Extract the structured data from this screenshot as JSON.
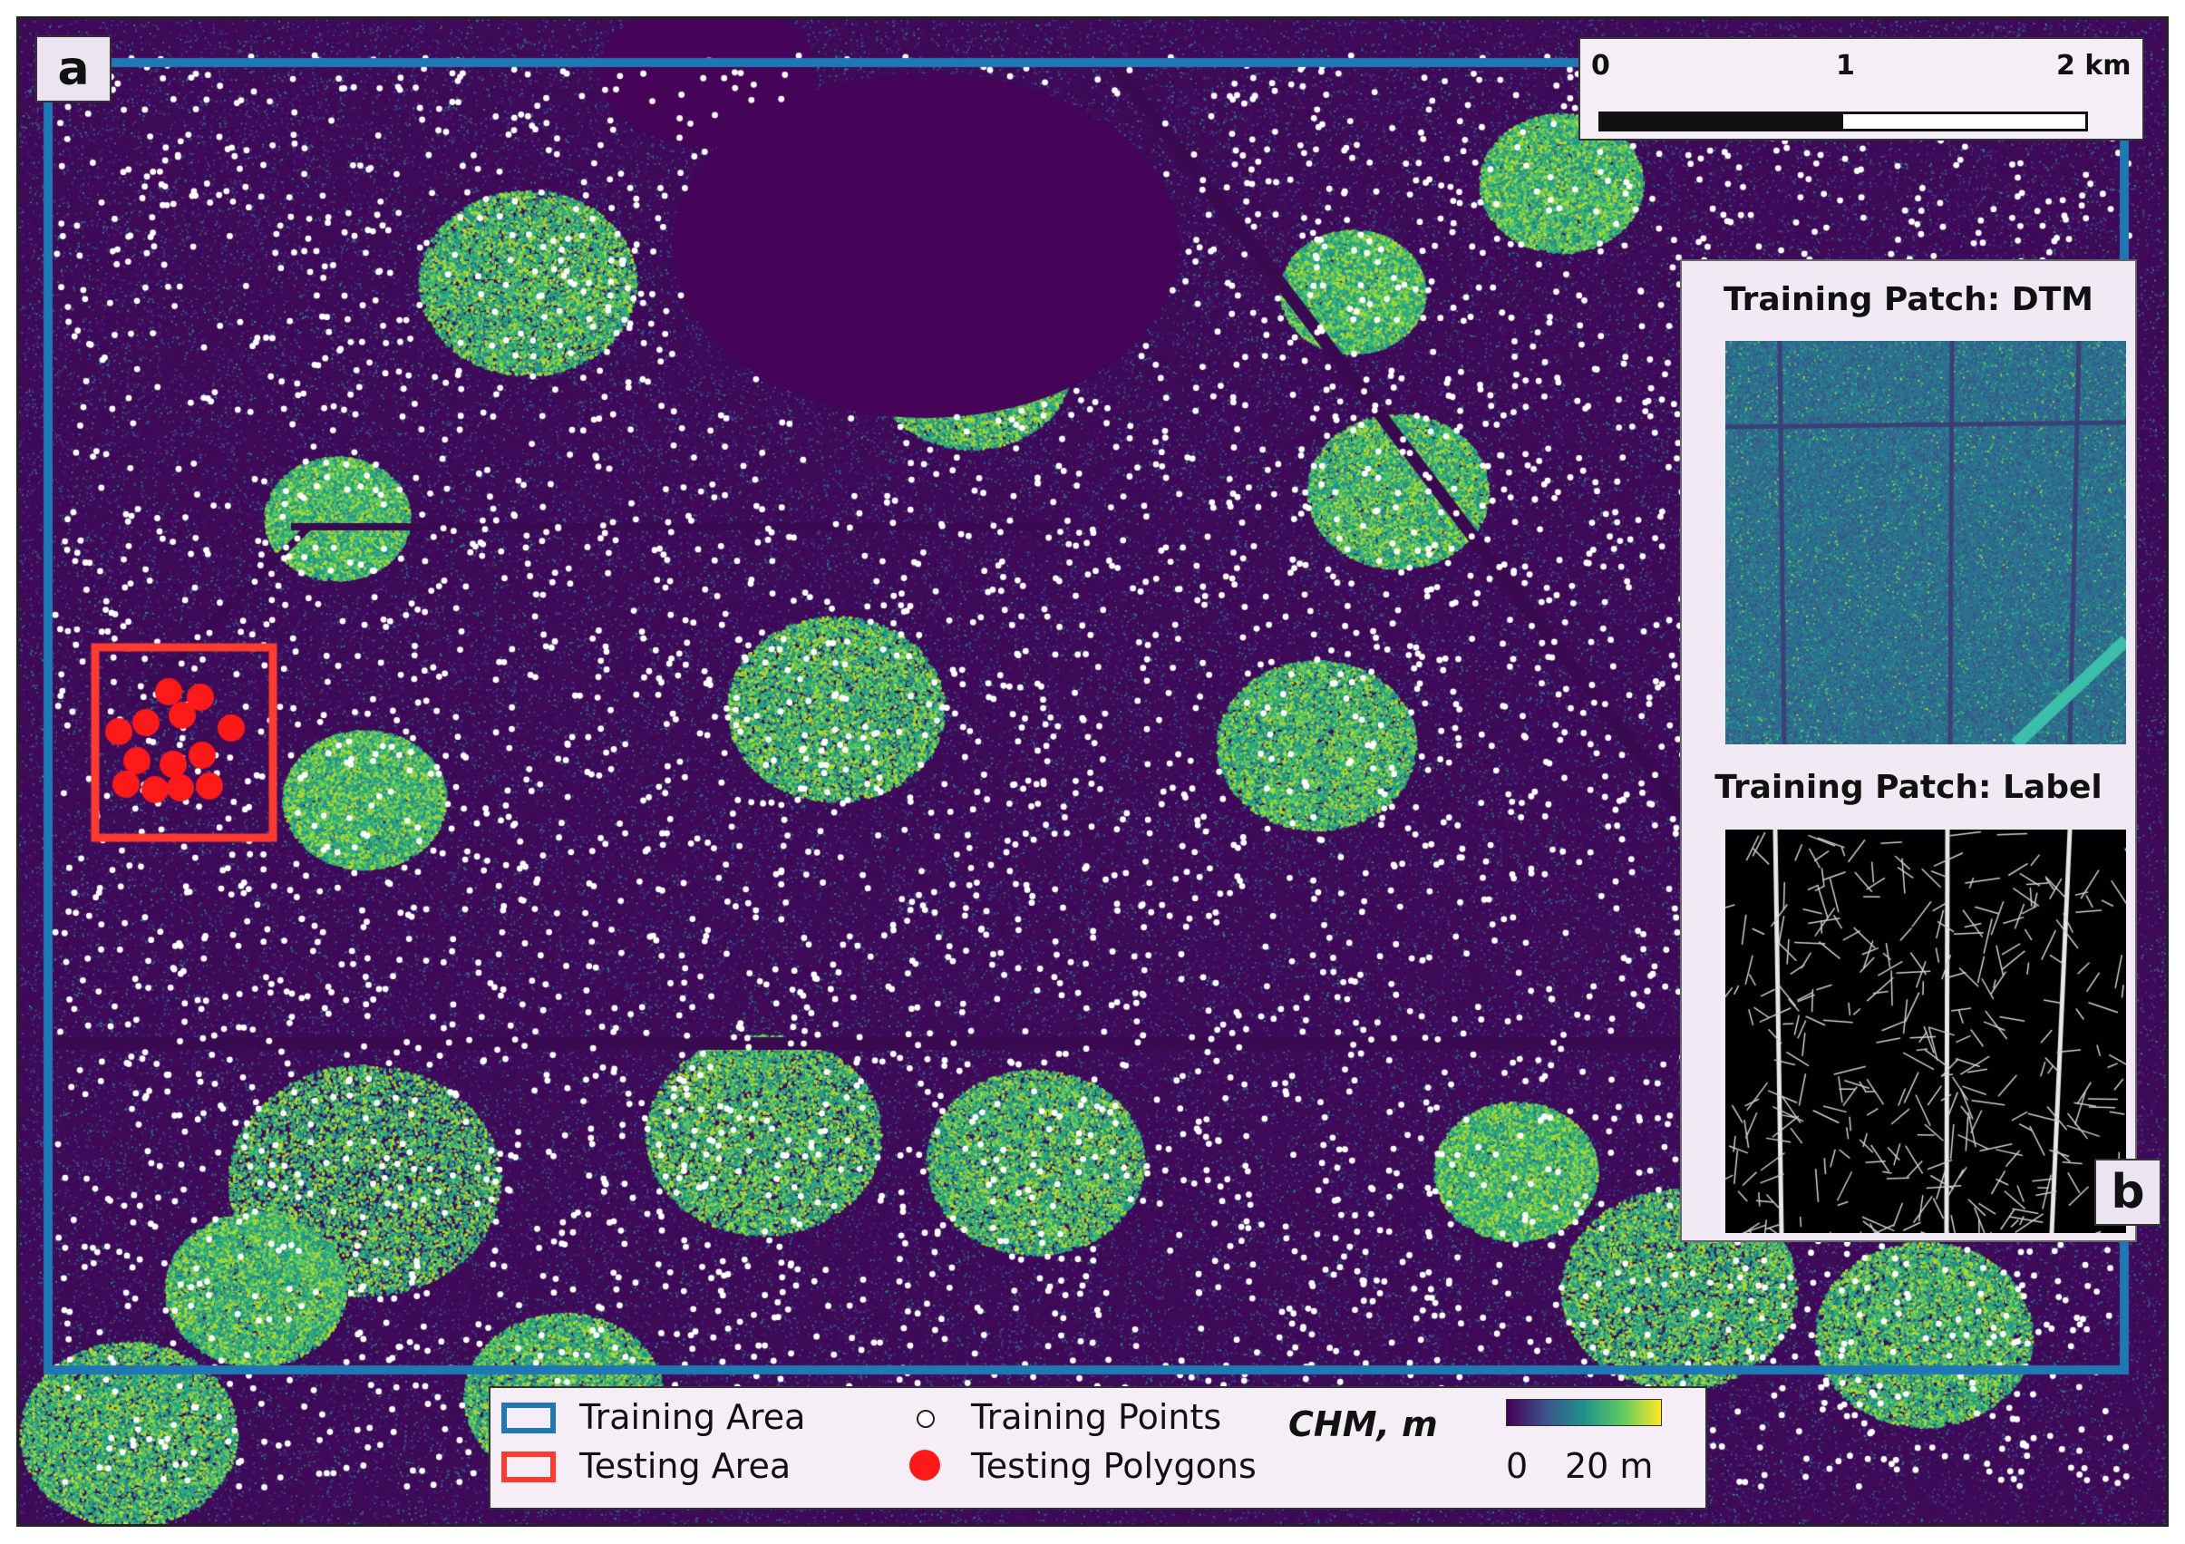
{
  "panels": {
    "main_letter": "a",
    "inset_letter": "b"
  },
  "scalebar": {
    "labels": [
      "0",
      "1",
      "2 km"
    ]
  },
  "inset": {
    "dtm_title": "Training Patch: DTM",
    "label_title": "Training Patch: Label"
  },
  "legend": {
    "training_area": "Training Area",
    "testing_area": "Testing Area",
    "training_points": "Training Points",
    "testing_polygons": "Testing Polygons",
    "chm_title": "CHM, m",
    "chm_min": "0",
    "chm_max": "20 m"
  },
  "colors": {
    "training_area": "#1f77b4",
    "testing_area": "#ff3b30",
    "training_points": "#ffffff",
    "testing_polygons": "#ff1a1a",
    "chm_ramp": [
      "#440154",
      "#3b528b",
      "#21918c",
      "#5ec962",
      "#fde725"
    ]
  }
}
